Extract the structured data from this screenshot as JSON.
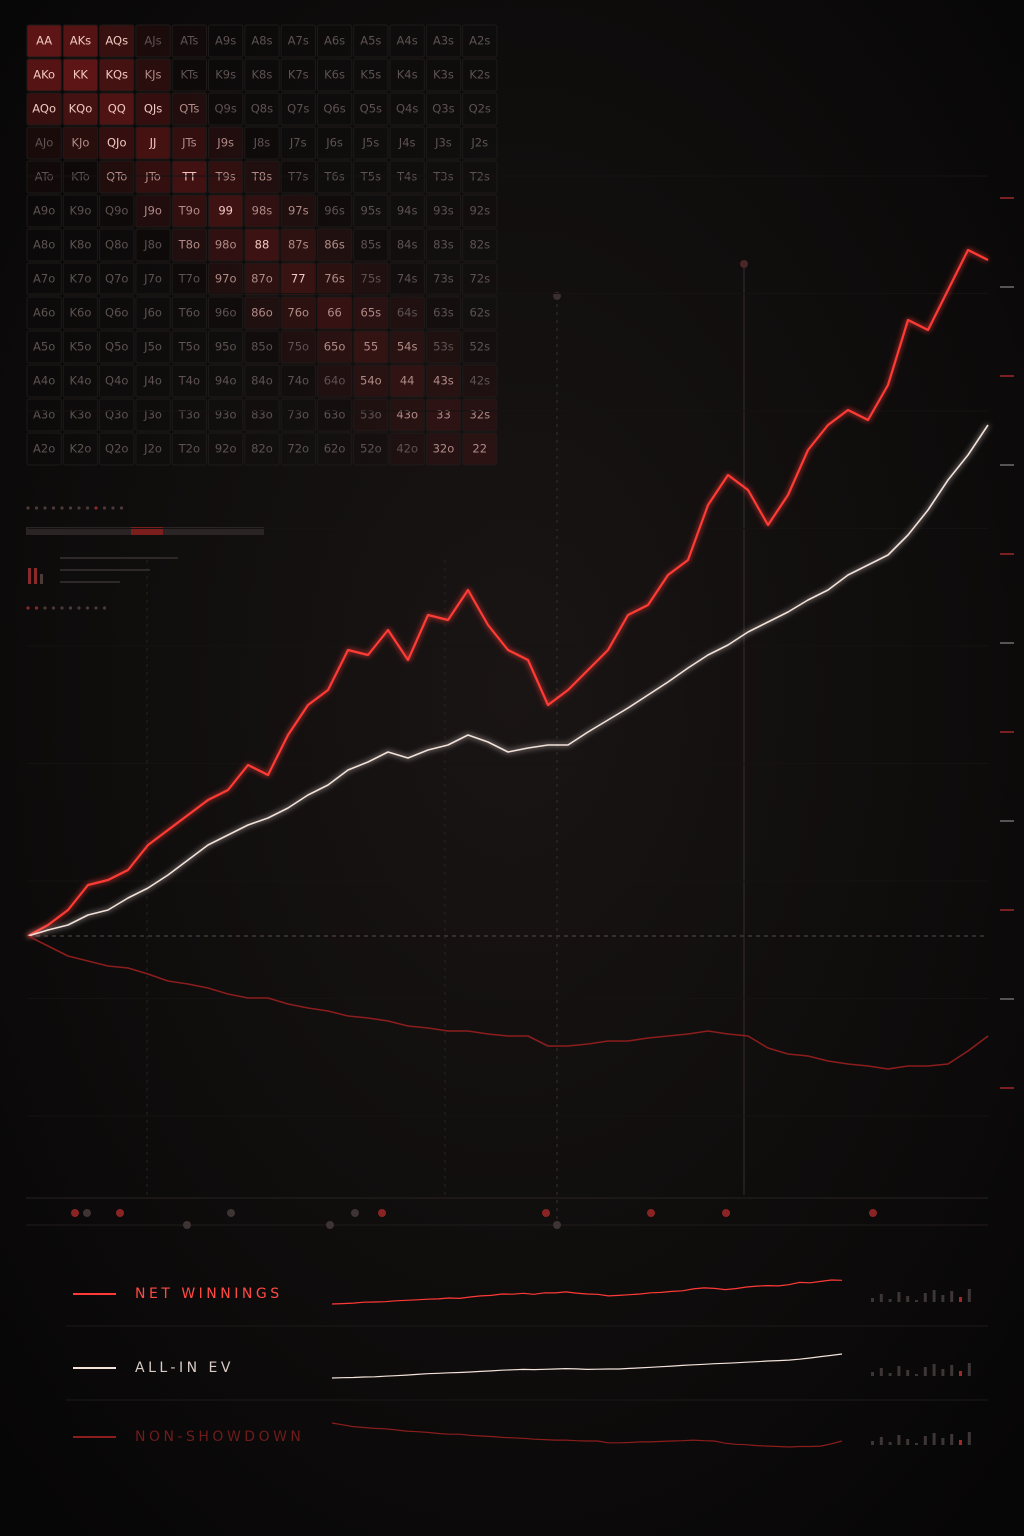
{
  "hand_grid": {
    "rows": [
      [
        "AA",
        "AKs",
        "AQs",
        "AJs",
        "ATs",
        "A9s",
        "A8s",
        "A7s",
        "A6s",
        "A5s",
        "A4s",
        "A3s",
        "A2s"
      ],
      [
        "AKo",
        "KK",
        "KQs",
        "KJs",
        "KTs",
        "K9s",
        "K8s",
        "K7s",
        "K6s",
        "K5s",
        "K4s",
        "K3s",
        "K2s"
      ],
      [
        "AQo",
        "KQo",
        "QQ",
        "QJs",
        "QTs",
        "Q9s",
        "Q8s",
        "Q7s",
        "Q6s",
        "Q5s",
        "Q4s",
        "Q3s",
        "Q2s"
      ],
      [
        "AJo",
        "KJo",
        "QJo",
        "JJ",
        "JTs",
        "J9s",
        "J8s",
        "J7s",
        "J6s",
        "J5s",
        "J4s",
        "J3s",
        "J2s"
      ],
      [
        "ATo",
        "KTo",
        "QTo",
        "JTo",
        "TT",
        "T9s",
        "T8s",
        "T7s",
        "T6s",
        "T5s",
        "T4s",
        "T3s",
        "T2s"
      ],
      [
        "A9o",
        "K9o",
        "Q9o",
        "J9o",
        "T9o",
        "99",
        "98s",
        "97s",
        "96s",
        "95s",
        "94s",
        "93s",
        "92s"
      ],
      [
        "A8o",
        "K8o",
        "Q8o",
        "J8o",
        "T8o",
        "98o",
        "88",
        "87s",
        "86s",
        "85s",
        "84s",
        "83s",
        "82s"
      ],
      [
        "A7o",
        "K7o",
        "Q7o",
        "J7o",
        "T7o",
        "97o",
        "87o",
        "77",
        "76s",
        "75s",
        "74s",
        "73s",
        "72s"
      ],
      [
        "A6o",
        "K6o",
        "Q6o",
        "J6o",
        "T6o",
        "96o",
        "86o",
        "76o",
        "66",
        "65s",
        "64s",
        "63s",
        "62s"
      ],
      [
        "A5o",
        "K5o",
        "Q5o",
        "J5o",
        "T5o",
        "95o",
        "85o",
        "75o",
        "65o",
        "55",
        "54s",
        "53s",
        "52s"
      ],
      [
        "A4o",
        "K4o",
        "Q4o",
        "J4o",
        "T4o",
        "94o",
        "84o",
        "74o",
        "64o",
        "54o",
        "44",
        "43s",
        "42s"
      ],
      [
        "A3o",
        "K3o",
        "Q3o",
        "J3o",
        "T3o",
        "93o",
        "83o",
        "73o",
        "63o",
        "53o",
        "43o",
        "33",
        "32s"
      ],
      [
        "A2o",
        "K2o",
        "Q2o",
        "J2o",
        "T2o",
        "92o",
        "82o",
        "72o",
        "62o",
        "52o",
        "42o",
        "32o",
        "22"
      ]
    ]
  },
  "chart_data": {
    "type": "line",
    "ylim": [
      -180,
      760
    ],
    "series": [
      {
        "name": "NET WINNINGS",
        "color": "#ff3a36",
        "values": [
          0,
          11,
          26,
          51,
          56,
          66,
          91,
          106,
          121,
          136,
          146,
          171,
          161,
          201,
          231,
          246,
          286,
          281,
          306,
          276,
          321,
          316,
          346,
          311,
          286,
          276,
          231,
          246,
          266,
          286,
          321,
          331,
          361,
          376,
          431,
          461,
          446,
          411,
          441,
          486,
          511,
          526,
          516,
          551,
          616,
          606,
          646,
          686,
          676
        ]
      },
      {
        "name": "ALL-IN EV",
        "color": "#f2e2da",
        "values": [
          0,
          6,
          11,
          21,
          26,
          38,
          48,
          61,
          76,
          91,
          101,
          111,
          118,
          128,
          141,
          151,
          166,
          174,
          184,
          178,
          186,
          191,
          201,
          194,
          184,
          188,
          191,
          191,
          204,
          216,
          228,
          241,
          254,
          268,
          281,
          291,
          304,
          314,
          324,
          336,
          346,
          361,
          371,
          381,
          401,
          426,
          456,
          481,
          511
        ]
      },
      {
        "name": "NON-SHOWDOWN",
        "color": "#8c1d1d",
        "values": [
          0,
          -10,
          -20,
          -25,
          -30,
          -32,
          -38,
          -45,
          -48,
          -52,
          -58,
          -62,
          -62,
          -68,
          -72,
          -75,
          -80,
          -82,
          -85,
          -90,
          -92,
          -95,
          -95,
          -98,
          -100,
          -100,
          -110,
          -110,
          -108,
          -105,
          -105,
          -102,
          -100,
          -98,
          -95,
          -98,
          -100,
          -112,
          -118,
          -120,
          -125,
          -128,
          -130,
          -133,
          -130,
          -130,
          -128,
          -115,
          -100
        ]
      }
    ]
  }
}
